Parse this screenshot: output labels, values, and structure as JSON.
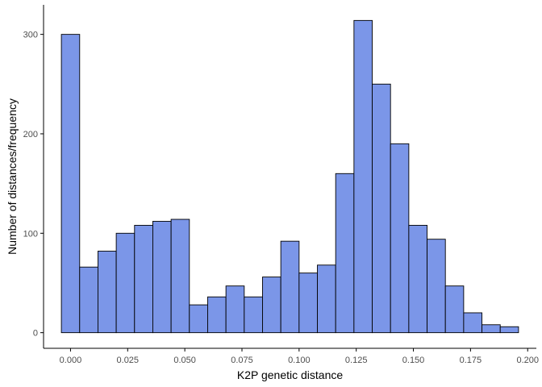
{
  "chart_data": {
    "type": "bar",
    "xlabel": "K2P genetic distance",
    "ylabel": "Number of distances/frequency",
    "bin_width": 0.008,
    "bins": [
      {
        "x": 0.0,
        "count": 300
      },
      {
        "x": 0.008,
        "count": 66
      },
      {
        "x": 0.016,
        "count": 82
      },
      {
        "x": 0.024,
        "count": 100
      },
      {
        "x": 0.032,
        "count": 108
      },
      {
        "x": 0.04,
        "count": 112
      },
      {
        "x": 0.048,
        "count": 114
      },
      {
        "x": 0.056,
        "count": 28
      },
      {
        "x": 0.064,
        "count": 36
      },
      {
        "x": 0.072,
        "count": 47
      },
      {
        "x": 0.08,
        "count": 36
      },
      {
        "x": 0.088,
        "count": 56
      },
      {
        "x": 0.096,
        "count": 92
      },
      {
        "x": 0.104,
        "count": 60
      },
      {
        "x": 0.112,
        "count": 68
      },
      {
        "x": 0.12,
        "count": 160
      },
      {
        "x": 0.128,
        "count": 314
      },
      {
        "x": 0.136,
        "count": 250
      },
      {
        "x": 0.144,
        "count": 190
      },
      {
        "x": 0.152,
        "count": 108
      },
      {
        "x": 0.16,
        "count": 94
      },
      {
        "x": 0.168,
        "count": 47
      },
      {
        "x": 0.176,
        "count": 20
      },
      {
        "x": 0.184,
        "count": 8
      },
      {
        "x": 0.192,
        "count": 6
      }
    ],
    "xlim": [
      -0.0118,
      0.2038
    ],
    "ylim": [
      -15.7,
      329.7
    ],
    "x_ticks": [
      0.0,
      0.025,
      0.05,
      0.075,
      0.1,
      0.125,
      0.15,
      0.175,
      0.2
    ],
    "x_tick_labels": [
      "0.000",
      "0.025",
      "0.050",
      "0.075",
      "0.100",
      "0.125",
      "0.150",
      "0.175",
      "0.200"
    ],
    "y_ticks": [
      0,
      100,
      200,
      300
    ],
    "y_tick_labels": [
      "0",
      "100",
      "200",
      "300"
    ],
    "grid": false,
    "legend": "none",
    "colors": {
      "fill": "#7b96e8",
      "stroke": "#000000",
      "axis": "#000000",
      "tick_text": "#4d4d4d"
    }
  }
}
